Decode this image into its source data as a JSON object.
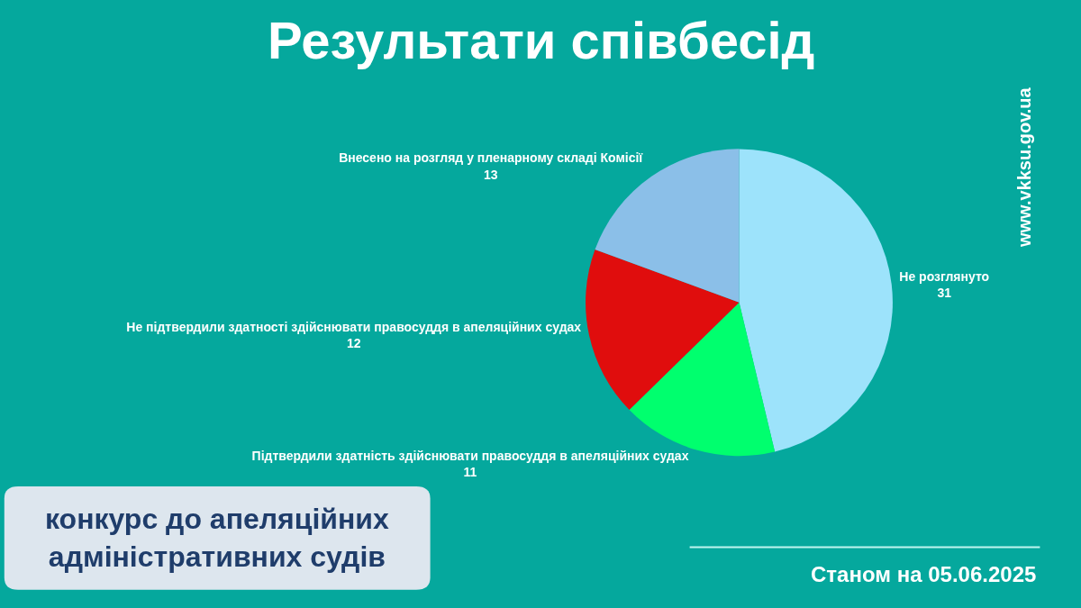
{
  "chart_data": {
    "type": "pie",
    "title": "Результати співбесід",
    "categories": [
      "Не розглянуто",
      "Підтвердили здатність здійснювати правосуддя в апеляційних судах",
      "Не підтвердили здатності здійснювати правосуддя в апеляційних судах",
      "Внесено на розгляд у пленарному складі Комісії"
    ],
    "values": [
      31,
      11,
      12,
      13
    ],
    "colors": [
      "#9de3fb",
      "#00ff6e",
      "#e00d0d",
      "#8bbfe8"
    ],
    "data_labels": true,
    "legend": false,
    "annotations": [
      "конкурс до апеляційних адміністративних судів",
      "Станом на 05.06.2025",
      "www.vkksu.gov.ua"
    ]
  }
}
